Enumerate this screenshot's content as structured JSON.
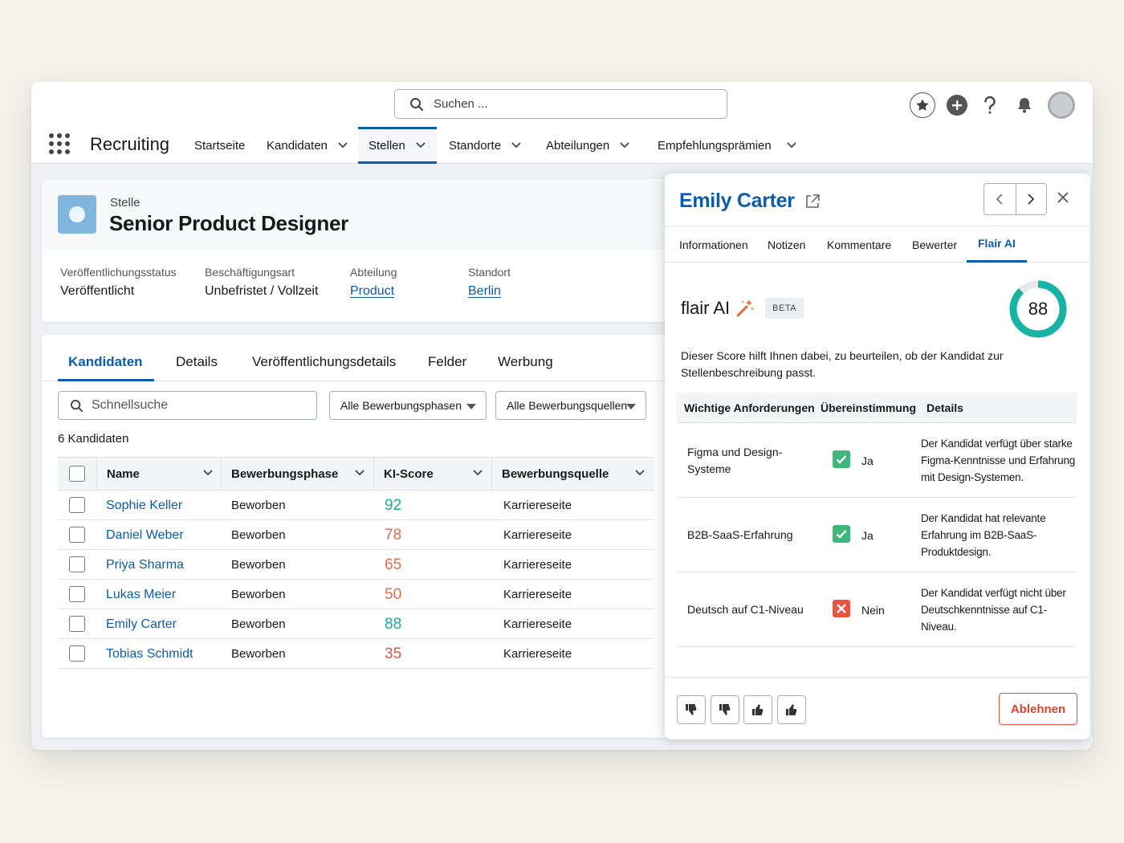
{
  "header": {
    "search_placeholder": "Suchen ...",
    "app_name": "Recruiting",
    "nav": [
      {
        "label": "Startseite"
      },
      {
        "label": "Kandidaten"
      },
      {
        "label": "Stellen"
      },
      {
        "label": "Standorte"
      },
      {
        "label": "Abteilungen"
      },
      {
        "label": "Empfehlungsprämien"
      }
    ],
    "active_nav": "Stellen"
  },
  "record": {
    "type": "Stelle",
    "title": "Senior Product Designer",
    "fields": [
      {
        "label": "Veröffentlichungsstatus",
        "value": "Veröffentlicht"
      },
      {
        "label": "Beschäftigungsart",
        "value": "Unbefristet / Vollzeit"
      },
      {
        "label": "Abteilung",
        "value": "Product"
      },
      {
        "label": "Standort",
        "value": "Berlin"
      }
    ]
  },
  "list": {
    "tabs": [
      "Kandidaten",
      "Details",
      "Veröffentlichungsdetails",
      "Felder",
      "Werbung"
    ],
    "active_tab": "Kandidaten",
    "quick_search_placeholder": "Schnellsuche",
    "filter_phases": "Alle Bewerbungsphasen",
    "filter_sources": "Alle Bewerbungsquellen",
    "count": "6 Kandidaten",
    "columns": [
      "Name",
      "Bewerbungsphase",
      "KI-Score",
      "Bewerbungsquelle"
    ],
    "rows": [
      {
        "name": "Sophie Keller",
        "phase": "Beworben",
        "score": "92",
        "source": "Karriereseite"
      },
      {
        "name": "Daniel Weber",
        "phase": "Beworben",
        "score": "78",
        "source": "Karriereseite"
      },
      {
        "name": "Priya Sharma",
        "phase": "Beworben",
        "score": "65",
        "source": "Karriereseite"
      },
      {
        "name": "Lukas Meier",
        "phase": "Beworben",
        "score": "50",
        "source": "Karriereseite"
      },
      {
        "name": "Emily Carter",
        "phase": "Beworben",
        "score": "88",
        "source": "Karriereseite"
      },
      {
        "name": "Tobias Schmidt",
        "phase": "Beworben",
        "score": "35",
        "source": "Karriereseite"
      }
    ],
    "score_colors": {
      "high": "#1aaa9c",
      "mid": "#ea6a47",
      "low": "#e5533d"
    }
  },
  "panel": {
    "candidate": "Emily Carter",
    "tabs": [
      "Informationen",
      "Notizen",
      "Kommentare",
      "Bewerter",
      "Flair AI"
    ],
    "active_tab": "Flair AI",
    "ai_name": "flair AI",
    "beta": "BETA",
    "score": "88",
    "score_fraction": 0.88,
    "description": "Dieser Score hilft Ihnen dabei, zu beurteilen, ob der Kandidat zur Stellenbeschreibung passt.",
    "req_columns": [
      "Wichtige Anforderungen",
      "Übereinstimmung",
      "Details"
    ],
    "requirements": [
      {
        "req": "Figma und Design-Systeme",
        "match": "Ja",
        "ok": true,
        "details": "Der Kandidat verfügt über starke Figma-Kenntnisse und Erfahrung mit Design-Systemen."
      },
      {
        "req": "B2B-SaaS-Erfahrung",
        "match": "Ja",
        "ok": true,
        "details": "Der Kandidat hat relevante Erfahrung im B2B-SaaS-Produktdesign."
      },
      {
        "req": "Deutsch auf C1-Niveau",
        "match": "Nein",
        "ok": false,
        "details": "Der Kandidat verfügt nicht über Deutschkenntnisse auf C1-Niveau."
      }
    ],
    "reject_label": "Ablehnen",
    "accent": "#0b5cab",
    "ring_color": "#17b3a5"
  }
}
